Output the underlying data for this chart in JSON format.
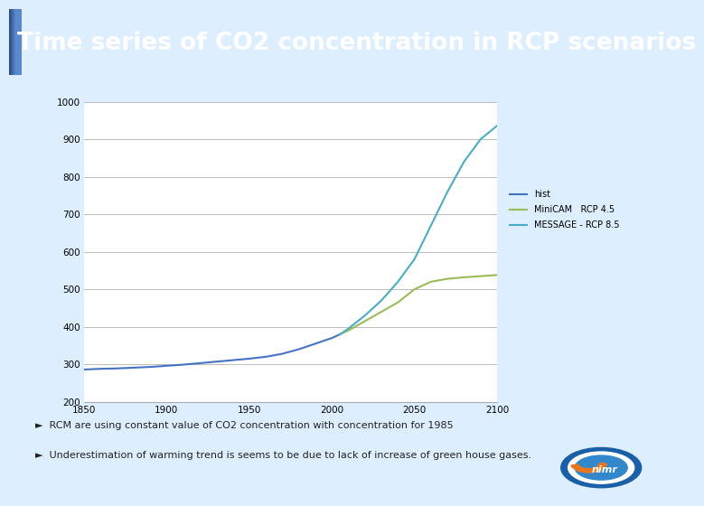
{
  "title": "Time series of CO2 concentration in RCP scenarios",
  "title_bg_start": "#1155aa",
  "title_bg_end": "#2277cc",
  "title_text_color": "#ffffff",
  "title_fontsize": 19,
  "bg_color": "#ddeeff",
  "plot_bg_color": "#ffffff",
  "xlim": [
    1850,
    2100
  ],
  "ylim": [
    200,
    1000
  ],
  "xticks": [
    1850,
    1900,
    1950,
    2000,
    2050,
    2100
  ],
  "yticks": [
    200,
    300,
    400,
    500,
    600,
    700,
    800,
    900,
    1000
  ],
  "grid_color": "#bbbbbb",
  "hist_color": "#4472c4",
  "minicam_color": "#9bbb59",
  "message_color": "#4bacc6",
  "hist_label": "hist",
  "minicam_label": "MiniCAM   RCP 4.5",
  "message_label": "MESSAGE - RCP 8.5",
  "footnote1": "►  RCM are using constant value of CO2 concentration with concentration for 1985",
  "footnote2": "►  Underestimation of warming trend is seems to be due to lack of increase of green house gases.",
  "hist_years": [
    1850,
    1860,
    1870,
    1880,
    1890,
    1900,
    1910,
    1920,
    1930,
    1940,
    1950,
    1960,
    1970,
    1980,
    1990,
    2000,
    2005
  ],
  "hist_values": [
    286,
    288,
    289,
    291,
    293,
    296,
    299,
    303,
    307,
    311,
    315,
    320,
    328,
    340,
    355,
    370,
    380
  ],
  "minicam_years": [
    2005,
    2010,
    2020,
    2030,
    2040,
    2050,
    2060,
    2070,
    2080,
    2090,
    2100
  ],
  "minicam_values": [
    380,
    390,
    415,
    440,
    465,
    500,
    520,
    528,
    532,
    535,
    538
  ],
  "message_years": [
    2005,
    2010,
    2020,
    2030,
    2040,
    2050,
    2060,
    2070,
    2080,
    2090,
    2100
  ],
  "message_values": [
    380,
    395,
    430,
    470,
    520,
    580,
    670,
    760,
    840,
    900,
    936
  ]
}
